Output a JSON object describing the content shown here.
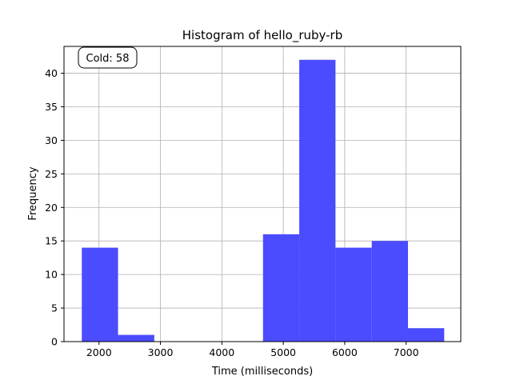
{
  "chart_data": {
    "type": "bar",
    "title": "Histogram of hello_ruby-rb",
    "xlabel": "Time (milliseconds)",
    "ylabel": "Frequency",
    "xlim": [
      1430,
      7890
    ],
    "ylim": [
      0,
      44
    ],
    "xticks": [
      2000,
      3000,
      4000,
      5000,
      6000,
      7000
    ],
    "yticks": [
      0,
      5,
      10,
      15,
      20,
      25,
      30,
      35,
      40
    ],
    "grid": true,
    "bar_color": "#4b4bff",
    "bins": [
      {
        "x0": 1720,
        "x1": 2310,
        "count": 14
      },
      {
        "x0": 2310,
        "x1": 2900,
        "count": 1
      },
      {
        "x0": 2900,
        "x1": 3490,
        "count": 0
      },
      {
        "x0": 3490,
        "x1": 4080,
        "count": 0
      },
      {
        "x0": 4080,
        "x1": 4670,
        "count": 0
      },
      {
        "x0": 4670,
        "x1": 5260,
        "count": 16
      },
      {
        "x0": 5260,
        "x1": 5850,
        "count": 42
      },
      {
        "x0": 5850,
        "x1": 6440,
        "count": 14
      },
      {
        "x0": 6440,
        "x1": 7030,
        "count": 15
      },
      {
        "x0": 7030,
        "x1": 7620,
        "count": 2
      }
    ],
    "annotation": {
      "text": "Cold: 58",
      "position": "top-left"
    }
  }
}
